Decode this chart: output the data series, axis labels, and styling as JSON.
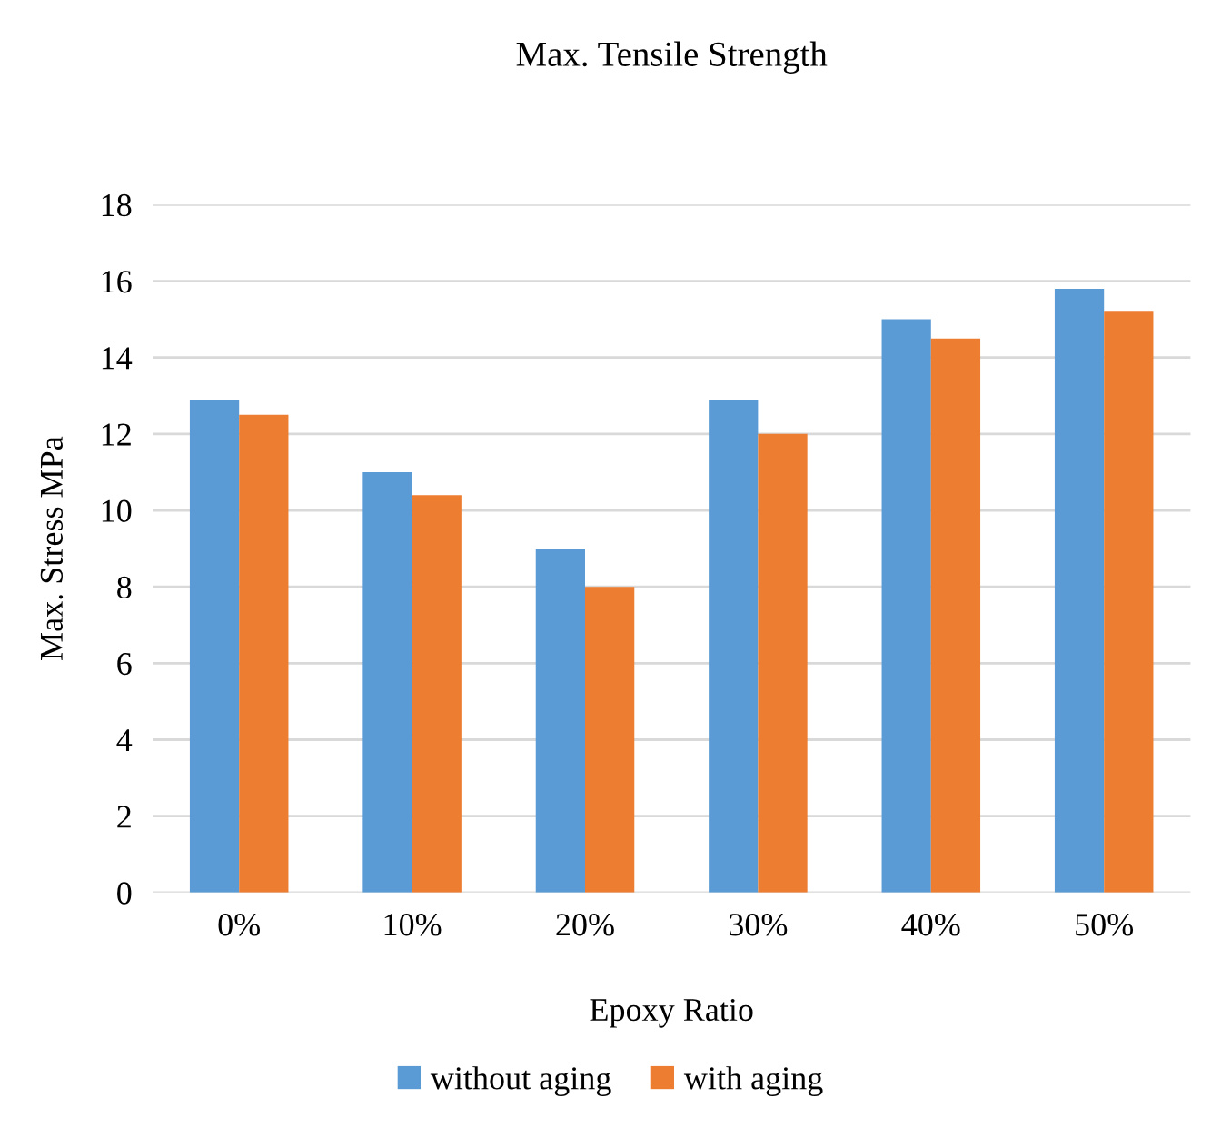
{
  "chart_data": {
    "type": "bar",
    "title": "Max. Tensile Strength",
    "xlabel": "Epoxy Ratio",
    "ylabel": "Max. Stress MPa",
    "categories": [
      "0%",
      "10%",
      "20%",
      "30%",
      "40%",
      "50%"
    ],
    "series": [
      {
        "name": "without aging",
        "color": "#5b9bd5",
        "values": [
          12.9,
          11.0,
          9.0,
          12.9,
          15.0,
          15.8
        ]
      },
      {
        "name": "with aging",
        "color": "#ed7d31",
        "values": [
          12.5,
          10.4,
          8.0,
          12.0,
          14.5,
          15.2
        ]
      }
    ],
    "ylim": [
      0,
      18
    ],
    "yticks": [
      0,
      2,
      4,
      6,
      8,
      10,
      12,
      14,
      16,
      18
    ],
    "grid": "y",
    "legend": "bottom"
  }
}
